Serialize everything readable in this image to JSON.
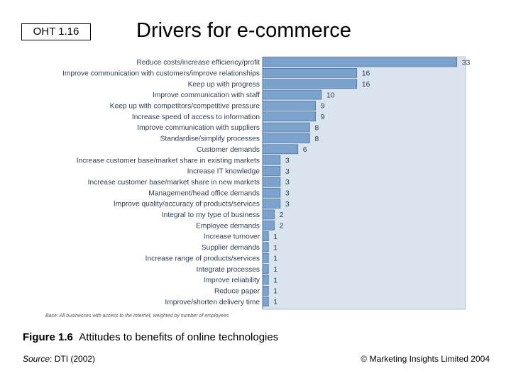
{
  "header": {
    "badge": "OHT 1.16",
    "title": "Drivers for e-commerce"
  },
  "chart_data": {
    "type": "bar",
    "orientation": "horizontal",
    "categories": [
      "Reduce costs/increase efficiency/profit",
      "Improve communication with customers/improve relationships",
      "Keep up with progress",
      "Improve communication with staff",
      "Keep up with competitors/competitive pressure",
      "Increase speed of access to information",
      "Improve communication with suppliers",
      "Standardise/simplify processes",
      "Customer demands",
      "Increase customer base/market share in existing markets",
      "Increase IT knowledge",
      "Increase customer base/market share in new markets",
      "Management/head office demands",
      "Improve quality/accuracy of products/services",
      "Integral to my type of business",
      "Employee demands",
      "Increase turnover",
      "Supplier demands",
      "Increase range of products/services",
      "Integrate processes",
      "Improve reliability",
      "Reduce paper",
      "Improve/shorten delivery time"
    ],
    "values": [
      33,
      16,
      16,
      10,
      9,
      9,
      8,
      8,
      6,
      3,
      3,
      3,
      3,
      3,
      2,
      2,
      1,
      1,
      1,
      1,
      1,
      1,
      1
    ],
    "xlim": [
      0,
      34
    ],
    "footnote": "Base: All businesses with access to the Internet, weighted by number of employees",
    "colors": {
      "plot_bg": "#d9e4ee",
      "bar": "#7ba2cc",
      "bar_stroke": "#4a6f98",
      "label": "#2e3d52"
    }
  },
  "caption": {
    "figure_label": "Figure 1.6",
    "text": "Attitudes to benefits of online technologies"
  },
  "source": {
    "label": "Source",
    "text": ": DTI (2002)"
  },
  "copyright": "© Marketing Insights Limited 2004"
}
